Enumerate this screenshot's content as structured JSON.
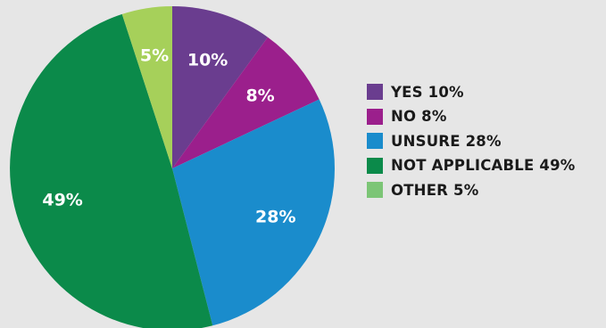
{
  "chart_data": {
    "type": "pie",
    "title": "",
    "slices": [
      {
        "name": "YES",
        "value": 10,
        "label": "10%",
        "legend": "YES 10%",
        "color": "#6a3d8f"
      },
      {
        "name": "NO",
        "value": 8,
        "label": "8%",
        "legend": "NO 8%",
        "color": "#9b1f8c"
      },
      {
        "name": "UNSURE",
        "value": 28,
        "label": "28%",
        "legend": "UNSURE 28%",
        "color": "#1a8ccc"
      },
      {
        "name": "NOT APPLICABLE",
        "value": 49,
        "label": "49%",
        "legend": "NOT APPLICABLE 49%",
        "color": "#0b8a4a"
      },
      {
        "name": "OTHER",
        "value": 5,
        "label": "5%",
        "legend": "OTHER 5%",
        "color": "#a6d05a"
      }
    ],
    "start_angle_deg": 0,
    "direction": "clockwise",
    "legend_position": "right"
  },
  "legend": {
    "colors": [
      "#6a3d8f",
      "#9b1f8c",
      "#1a8ccc",
      "#0b8a4a",
      "#7cc576"
    ]
  }
}
